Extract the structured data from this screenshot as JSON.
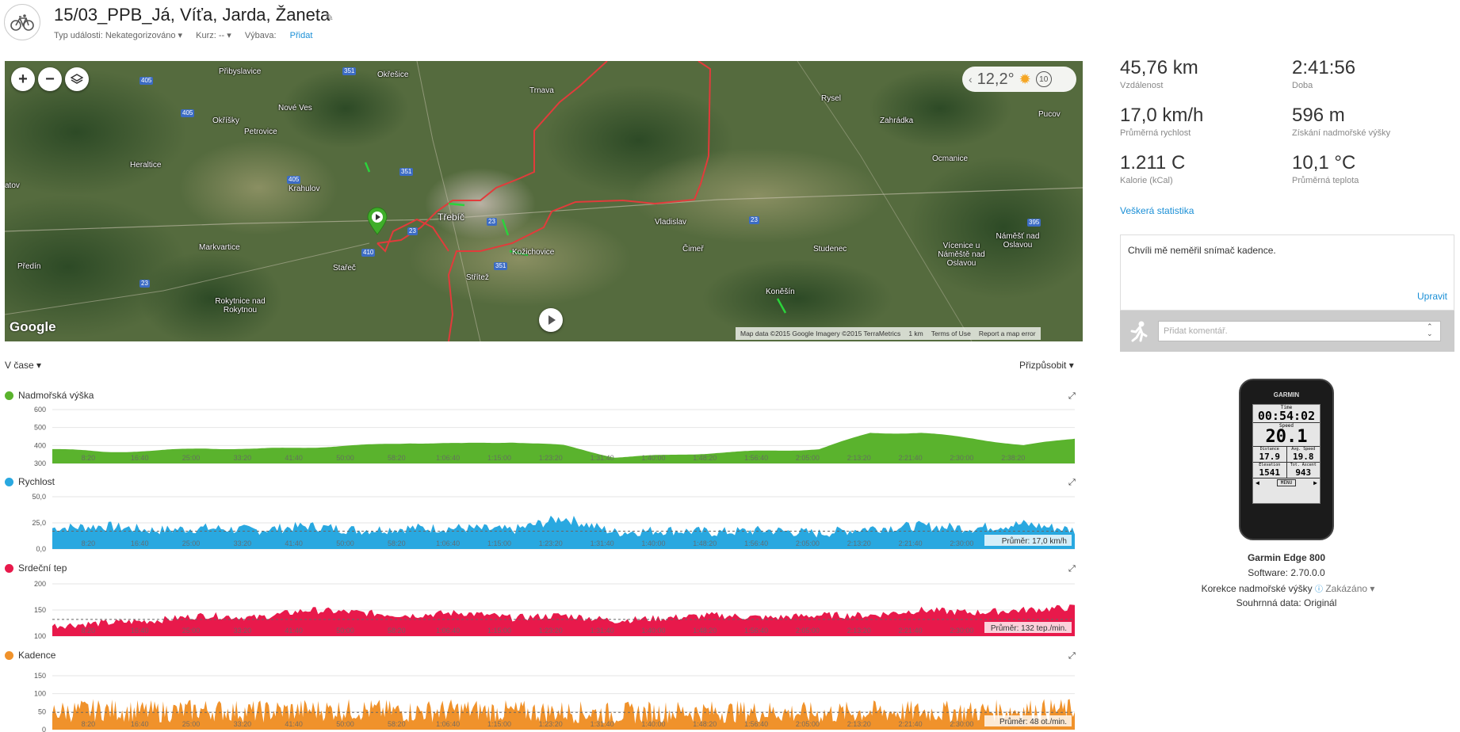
{
  "header": {
    "title": "15/03_PPB_Já, Víťa, Jarda, Žaneta",
    "event_type": "Typ události: Nekategorizováno ▾",
    "course": "Kurz: -- ▾",
    "gear_label": "Výbava:",
    "gear_link": "Přidat"
  },
  "map": {
    "temperature": "12,2°",
    "wind": "10",
    "google": "Google",
    "attribution": "Map data ©2015 Google Imagery ©2015 TerraMetrics",
    "scale": "1 km",
    "terms": "Terms of Use",
    "report": "Report a map error",
    "places": [
      "Přibyslavice",
      "Okřešice",
      "Trnava",
      "Rysel",
      "Zahrádka",
      "Pucov",
      "Okříšky",
      "Nové Ves",
      "Petrovice",
      "Heraltice",
      "Krahulov",
      "Třebíč",
      "Vladislav",
      "Ocmanice",
      "Markvartice",
      "Stařeč",
      "Kožichovice",
      "Střítež",
      "Čimeř",
      "Studenec",
      "Vícenice u Náměště nad Oslavou",
      "Náměšť nad Oslavou",
      "Předín",
      "Koněšín",
      "Rokytnice nad Rokytnou",
      "atov"
    ],
    "roads": [
      "405",
      "351",
      "405",
      "405",
      "351",
      "410",
      "23",
      "351",
      "23",
      "395",
      "23",
      "23"
    ],
    "track_color": "#e23b3b"
  },
  "controls": {
    "x_mode": "V čase ▾",
    "fit": "Přizpůsobit ▾"
  },
  "charts": {
    "x_ticks": [
      "8:20",
      "16:40",
      "25:00",
      "33:20",
      "41:40",
      "50:00",
      "58:20",
      "1:06:40",
      "1:15:00",
      "1:23:20",
      "1:31:40",
      "1:40:00",
      "1:48:20",
      "1:56:40",
      "2:05:00",
      "2:13:20",
      "2:21:40",
      "2:30:00",
      "2:38:20"
    ],
    "elevation": {
      "label": "Nadmořská výška",
      "color": "#5ab32d",
      "yticks": [
        "600",
        "500",
        "400",
        "300"
      ]
    },
    "speed": {
      "label": "Rychlost",
      "color": "#29a8e0",
      "yticks": [
        "50,0",
        "25,0",
        "0,0"
      ],
      "avg": "Průměr: 17,0 km/h"
    },
    "hr": {
      "label": "Srdeční tep",
      "color": "#e8194b",
      "yticks": [
        "200",
        "150",
        "100"
      ],
      "avg": "Průměr: 132 tep./min."
    },
    "cadence": {
      "label": "Kadence",
      "color": "#f0922b",
      "yticks": [
        "150",
        "100",
        "50",
        "0"
      ],
      "avg": "Průměr: 48 ot./min."
    }
  },
  "chart_data": [
    {
      "type": "area",
      "title": "Nadmořská výška",
      "ylim": [
        300,
        600
      ],
      "x_unit": "time",
      "x": [
        "0:00",
        "8:20",
        "16:40",
        "25:00",
        "33:20",
        "41:40",
        "50:00",
        "58:20",
        "1:06:40",
        "1:15:00",
        "1:23:20",
        "1:31:40",
        "1:40:00",
        "1:48:20",
        "1:56:40",
        "2:05:00",
        "2:13:20",
        "2:21:40",
        "2:30:00",
        "2:38:20",
        "2:41:56"
      ],
      "values": [
        380,
        365,
        370,
        385,
        380,
        390,
        400,
        415,
        410,
        420,
        400,
        335,
        345,
        360,
        370,
        380,
        470,
        470,
        440,
        400,
        440
      ]
    },
    {
      "type": "area",
      "title": "Rychlost",
      "ylim": [
        0,
        50
      ],
      "x": [
        "0:00",
        "8:20",
        "16:40",
        "25:00",
        "33:20",
        "41:40",
        "50:00",
        "58:20",
        "1:06:40",
        "1:15:00",
        "1:23:20",
        "1:31:40",
        "1:40:00",
        "1:48:20",
        "1:56:40",
        "2:05:00",
        "2:13:20",
        "2:21:40",
        "2:30:00",
        "2:38:20",
        "2:41:56"
      ],
      "values": [
        20,
        22,
        18,
        20,
        18,
        22,
        18,
        20,
        20,
        18,
        30,
        16,
        18,
        16,
        18,
        15,
        20,
        22,
        20,
        24,
        18
      ],
      "avg": 17.0
    },
    {
      "type": "area",
      "title": "Srdeční tep",
      "ylim": [
        100,
        200
      ],
      "x": [
        "0:00",
        "8:20",
        "16:40",
        "25:00",
        "33:20",
        "41:40",
        "50:00",
        "58:20",
        "1:06:40",
        "1:15:00",
        "1:23:20",
        "1:31:40",
        "1:40:00",
        "1:48:20",
        "1:56:40",
        "2:05:00",
        "2:13:20",
        "2:21:40",
        "2:30:00",
        "2:38:20",
        "2:41:56"
      ],
      "values": [
        120,
        125,
        130,
        140,
        135,
        150,
        145,
        140,
        145,
        135,
        140,
        130,
        135,
        140,
        135,
        140,
        140,
        150,
        145,
        150,
        155
      ],
      "avg": 132
    },
    {
      "type": "area",
      "title": "Kadence",
      "ylim": [
        0,
        150
      ],
      "x": [
        "0:00",
        "8:20",
        "16:40",
        "25:00",
        "33:20",
        "41:40",
        "50:00",
        "58:20",
        "1:06:40",
        "1:15:00",
        "1:23:20",
        "1:31:40",
        "1:40:00",
        "1:48:20",
        "1:56:40",
        "2:05:00",
        "2:13:20",
        "2:21:40",
        "2:30:00",
        "2:38:20",
        "2:41:56"
      ],
      "values": [
        50,
        55,
        50,
        55,
        50,
        55,
        55,
        50,
        55,
        50,
        50,
        45,
        50,
        50,
        50,
        45,
        50,
        50,
        50,
        55,
        55
      ],
      "avg": 48
    }
  ],
  "stats": [
    {
      "value": "45,76 km",
      "label": "Vzdálenost"
    },
    {
      "value": "2:41:56",
      "label": "Doba"
    },
    {
      "value": "17,0 km/h",
      "label": "Průměrná rychlost"
    },
    {
      "value": "596 m",
      "label": "Získání nadmořské výšky"
    },
    {
      "value": "1.211 C",
      "label": "Kalorie (kCal)"
    },
    {
      "value": "10,1 °C",
      "label": "Průměrná teplota"
    }
  ],
  "all_stats_link": "Veškerá statistika",
  "note": {
    "text": "Chvíli mě neměřil snímač kadence.",
    "edit": "Upravit"
  },
  "comment": {
    "placeholder": "Přidat komentář."
  },
  "device": {
    "brand": "GARMIN",
    "screen_time_label": "Time",
    "screen_time": "00:54:02",
    "screen_speed_label": "Speed",
    "screen_speed": "20.1",
    "screen_distance_label": "Distance",
    "screen_distance": "17.9",
    "screen_avgspeed_label": "Avg. Speed",
    "screen_avgspeed": "19.8",
    "screen_elev_label": "Elevation",
    "screen_elev": "1541",
    "screen_ascent_label": "Tot. Ascent",
    "screen_ascent": "943",
    "screen_menu": "MENU",
    "name": "Garmin Edge 800",
    "software": "Software: 2.70.0.0",
    "correction_label": "Korekce nadmořské výšky",
    "correction_value": "Zakázáno",
    "summary": "Souhrnná data: Originál"
  }
}
